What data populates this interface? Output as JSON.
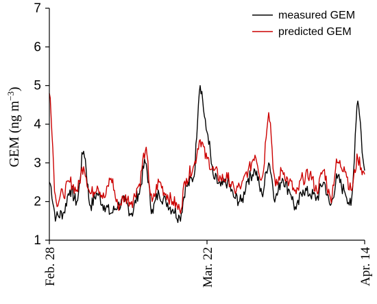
{
  "chart_data": {
    "type": "line",
    "ylabel": "GEM (ng m",
    "ylabel_sup": "−3",
    "ylabel_close": ")",
    "ylim": [
      1,
      7
    ],
    "yticks": [
      1,
      2,
      3,
      4,
      5,
      6,
      7
    ],
    "xlim": [
      "2016-02-28",
      "2016-04-14"
    ],
    "xticks": [
      {
        "date": "2016-02-28",
        "label": "Feb. 28"
      },
      {
        "date": "2016-03-22",
        "label": "Mar. 22"
      },
      {
        "date": "2016-04-14",
        "label": "Apr. 14"
      }
    ],
    "legend_position": "top-right",
    "series": [
      {
        "name": "measured GEM",
        "color": "#000000",
        "x": [
          "2016-02-28",
          "2016-02-29",
          "2016-03-01",
          "2016-03-02",
          "2016-03-03",
          "2016-03-04",
          "2016-03-05",
          "2016-03-06",
          "2016-03-07",
          "2016-03-08",
          "2016-03-09",
          "2016-03-10",
          "2016-03-11",
          "2016-03-12",
          "2016-03-13",
          "2016-03-14",
          "2016-03-15",
          "2016-03-16",
          "2016-03-17",
          "2016-03-18",
          "2016-03-19",
          "2016-03-20",
          "2016-03-21",
          "2016-03-22",
          "2016-03-23",
          "2016-03-24",
          "2016-03-25",
          "2016-03-26",
          "2016-03-27",
          "2016-03-28",
          "2016-03-29",
          "2016-03-30",
          "2016-03-31",
          "2016-04-01",
          "2016-04-02",
          "2016-04-03",
          "2016-04-04",
          "2016-04-05",
          "2016-04-06",
          "2016-04-07",
          "2016-04-08",
          "2016-04-09",
          "2016-04-10",
          "2016-04-11",
          "2016-04-12",
          "2016-04-13",
          "2016-04-14"
        ],
        "y": [
          2.5,
          1.6,
          1.7,
          2.3,
          2.0,
          3.3,
          1.9,
          2.2,
          1.9,
          1.7,
          1.9,
          2.0,
          1.7,
          2.2,
          3.0,
          1.8,
          2.2,
          2.0,
          1.8,
          1.6,
          2.4,
          2.6,
          5.0,
          3.8,
          2.6,
          2.4,
          2.5,
          2.1,
          2.0,
          2.6,
          2.8,
          2.2,
          3.0,
          2.1,
          2.6,
          2.3,
          1.8,
          2.3,
          2.2,
          2.1,
          2.5,
          1.9,
          2.6,
          2.3,
          1.9,
          4.6,
          2.8
        ]
      },
      {
        "name": "predicted GEM",
        "color": "#cc0000",
        "x": [
          "2016-02-28",
          "2016-02-29",
          "2016-03-01",
          "2016-03-02",
          "2016-03-03",
          "2016-03-04",
          "2016-03-05",
          "2016-03-06",
          "2016-03-07",
          "2016-03-08",
          "2016-03-09",
          "2016-03-10",
          "2016-03-11",
          "2016-03-12",
          "2016-03-13",
          "2016-03-14",
          "2016-03-15",
          "2016-03-16",
          "2016-03-17",
          "2016-03-18",
          "2016-03-19",
          "2016-03-20",
          "2016-03-21",
          "2016-03-22",
          "2016-03-23",
          "2016-03-24",
          "2016-03-25",
          "2016-03-26",
          "2016-03-27",
          "2016-03-28",
          "2016-03-29",
          "2016-03-30",
          "2016-03-31",
          "2016-04-01",
          "2016-04-02",
          "2016-04-03",
          "2016-04-04",
          "2016-04-05",
          "2016-04-06",
          "2016-04-07",
          "2016-04-08",
          "2016-04-09",
          "2016-04-10",
          "2016-04-11",
          "2016-04-12",
          "2016-04-13",
          "2016-04-14"
        ],
        "y": [
          4.8,
          2.0,
          2.2,
          2.5,
          2.3,
          2.9,
          2.2,
          2.4,
          2.1,
          2.6,
          1.9,
          2.1,
          2.0,
          2.4,
          3.3,
          2.0,
          2.5,
          2.2,
          2.0,
          1.8,
          2.6,
          2.9,
          3.6,
          3.1,
          2.8,
          2.6,
          2.6,
          2.3,
          2.4,
          2.8,
          3.2,
          2.6,
          4.3,
          2.4,
          2.8,
          2.5,
          2.2,
          2.6,
          2.7,
          2.3,
          2.8,
          2.1,
          3.0,
          2.9,
          2.3,
          3.1,
          2.7
        ]
      }
    ]
  }
}
